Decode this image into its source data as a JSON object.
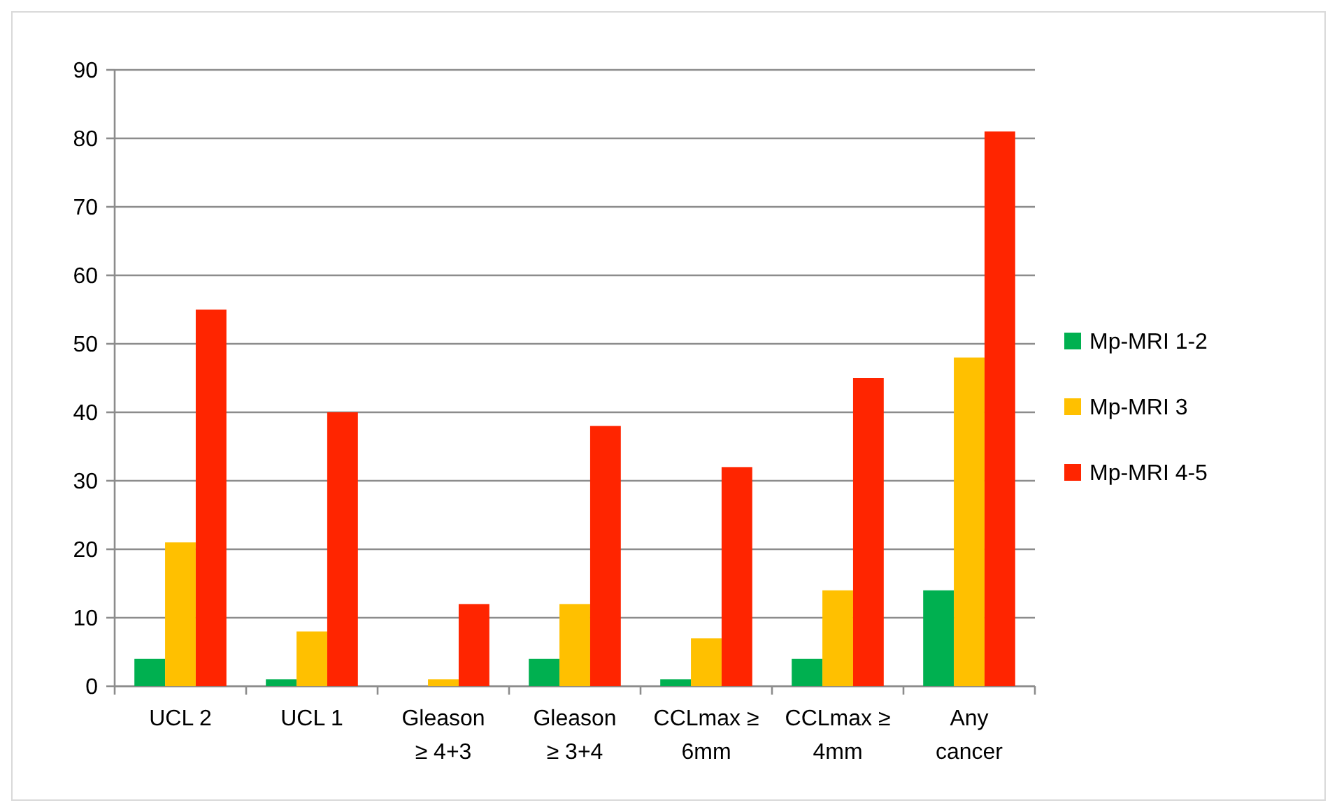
{
  "chart_data": {
    "type": "bar",
    "categories": [
      "UCL 2",
      "UCL 1",
      "Gleason ≥ 4+3",
      "Gleason ≥ 3+4",
      "CCLmax ≥ 6mm",
      "CCLmax ≥ 4mm",
      "Any cancer"
    ],
    "series": [
      {
        "name": "Mp-MRI 1-2",
        "color": "#00b050",
        "values": [
          4,
          1,
          0,
          4,
          1,
          4,
          14
        ]
      },
      {
        "name": "Mp-MRI 3",
        "color": "#ffc000",
        "values": [
          21,
          8,
          1,
          12,
          7,
          14,
          48
        ]
      },
      {
        "name": "Mp-MRI 4-5",
        "color": "#ff2500",
        "values": [
          55,
          40,
          12,
          38,
          32,
          45,
          81
        ]
      }
    ],
    "ylim": [
      0,
      90
    ],
    "yticks": [
      0,
      10,
      20,
      30,
      40,
      50,
      60,
      70,
      80,
      90
    ],
    "grid": "y",
    "legend": "right"
  }
}
